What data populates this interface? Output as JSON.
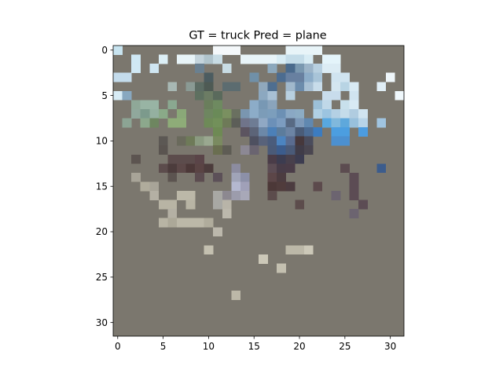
{
  "chart_data": {
    "type": "heatmap",
    "title": "GT = truck Pred = plane",
    "xlabel": "",
    "ylabel": "",
    "grid": false,
    "image_size": [
      32,
      32
    ],
    "xlim": [
      -0.5,
      31.5
    ],
    "ylim": [
      31.5,
      -0.5
    ],
    "x_ticks": [
      0,
      5,
      10,
      15,
      20,
      25,
      30
    ],
    "y_ticks": [
      0,
      5,
      10,
      15,
      20,
      25,
      30
    ],
    "background_color": "#7b776e",
    "runs": [
      [
        0,
        0,
        1,
        "#c8e4f0"
      ],
      [
        0,
        11,
        3,
        "#f4f8fa"
      ],
      [
        0,
        19,
        4,
        "#e8f4f8"
      ],
      [
        1,
        2,
        1,
        "#cfe8f4"
      ],
      [
        1,
        5,
        1,
        "#dceff6"
      ],
      [
        1,
        7,
        2,
        "#e8f4f8"
      ],
      [
        1,
        9,
        1,
        "#c4d4dc"
      ],
      [
        1,
        10,
        1,
        "#b0c4cc"
      ],
      [
        1,
        11,
        1,
        "#c8dce4"
      ],
      [
        1,
        14,
        4,
        "#e8f4f8"
      ],
      [
        1,
        18,
        1,
        "#d8ecf4"
      ],
      [
        1,
        19,
        2,
        "#c4dce8"
      ],
      [
        1,
        21,
        1,
        "#d8ecf4"
      ],
      [
        1,
        23,
        2,
        "#e4f4fa"
      ],
      [
        2,
        2,
        1,
        "#d0e8f4"
      ],
      [
        2,
        4,
        1,
        "#cfe6f2"
      ],
      [
        2,
        9,
        1,
        "#6a8090"
      ],
      [
        2,
        12,
        1,
        "#c8dce4"
      ],
      [
        2,
        17,
        1,
        "#8ca8bc"
      ],
      [
        2,
        19,
        1,
        "#4a6a8c"
      ],
      [
        2,
        20,
        1,
        "#7a98b0"
      ],
      [
        2,
        21,
        1,
        "#9cb4c8"
      ],
      [
        2,
        22,
        1,
        "#b8d0e0"
      ],
      [
        2,
        23,
        2,
        "#dcecf4"
      ],
      [
        3,
        0,
        2,
        "#c4dcec"
      ],
      [
        3,
        10,
        1,
        "#4c5c60"
      ],
      [
        3,
        15,
        1,
        "#7090a8"
      ],
      [
        3,
        18,
        1,
        "#4c6c90"
      ],
      [
        3,
        19,
        2,
        "#6880a0"
      ],
      [
        3,
        21,
        1,
        "#8cacc8"
      ],
      [
        3,
        22,
        1,
        "#a8c4d8"
      ],
      [
        3,
        24,
        2,
        "#d0e4f0"
      ],
      [
        3,
        30,
        1,
        "#eef6fa"
      ],
      [
        4,
        6,
        1,
        "#a8b8b4"
      ],
      [
        4,
        8,
        1,
        "#8a9a94"
      ],
      [
        4,
        9,
        1,
        "#5c6c64"
      ],
      [
        4,
        10,
        1,
        "#4e5a54"
      ],
      [
        4,
        12,
        2,
        "#5c6c70"
      ],
      [
        4,
        16,
        1,
        "#90a8bc"
      ],
      [
        4,
        17,
        1,
        "#4e6e90"
      ],
      [
        4,
        19,
        1,
        "#a0b8cc"
      ],
      [
        4,
        20,
        1,
        "#6c8cac"
      ],
      [
        4,
        21,
        1,
        "#a8c0d4"
      ],
      [
        4,
        22,
        1,
        "#c8dcea"
      ],
      [
        4,
        24,
        1,
        "#d4e6f0"
      ],
      [
        4,
        25,
        1,
        "#b8d4e4"
      ],
      [
        4,
        26,
        1,
        "#d8eaf4"
      ],
      [
        4,
        29,
        1,
        "#e0eef6"
      ],
      [
        5,
        0,
        1,
        "#d8ecf6"
      ],
      [
        5,
        1,
        1,
        "#88a8c0"
      ],
      [
        5,
        9,
        1,
        "#5e7060"
      ],
      [
        5,
        10,
        1,
        "#6c7c64"
      ],
      [
        5,
        11,
        1,
        "#5a6a5c"
      ],
      [
        5,
        16,
        1,
        "#8ca8c0"
      ],
      [
        5,
        17,
        1,
        "#a8c0d4"
      ],
      [
        5,
        19,
        1,
        "#b8d0e0"
      ],
      [
        5,
        23,
        2,
        "#c8dcec"
      ],
      [
        5,
        26,
        1,
        "#d0e4f0"
      ],
      [
        5,
        31,
        1,
        "#f0f8fc"
      ],
      [
        6,
        2,
        1,
        "#8fa898"
      ],
      [
        6,
        3,
        2,
        "#98b4a4"
      ],
      [
        6,
        6,
        1,
        "#8aa890"
      ],
      [
        6,
        10,
        1,
        "#6a7e5c"
      ],
      [
        6,
        11,
        1,
        "#6e8a60"
      ],
      [
        6,
        15,
        1,
        "#8cacc8"
      ],
      [
        6,
        16,
        1,
        "#7898b4"
      ],
      [
        6,
        17,
        1,
        "#8aa4bc"
      ],
      [
        6,
        22,
        1,
        "#9cc0d8"
      ],
      [
        6,
        23,
        1,
        "#c0d8e8"
      ],
      [
        6,
        25,
        1,
        "#c8e0ec"
      ],
      [
        6,
        26,
        1,
        "#d8eaf4"
      ],
      [
        7,
        2,
        1,
        "#90a89c"
      ],
      [
        7,
        3,
        1,
        "#7c9a8c"
      ],
      [
        7,
        4,
        1,
        "#94b0a0"
      ],
      [
        7,
        5,
        1,
        "#8aaa88"
      ],
      [
        7,
        7,
        1,
        "#8aa878"
      ],
      [
        7,
        10,
        1,
        "#6e8660"
      ],
      [
        7,
        11,
        1,
        "#6a8a58"
      ],
      [
        7,
        12,
        1,
        "#7a9060"
      ],
      [
        7,
        13,
        1,
        "#6a7060"
      ],
      [
        7,
        14,
        1,
        "#7a96b0"
      ],
      [
        7,
        15,
        1,
        "#8cacc8"
      ],
      [
        7,
        16,
        1,
        "#7c9cb8"
      ],
      [
        7,
        17,
        1,
        "#7c9ebc"
      ],
      [
        7,
        18,
        1,
        "#6c90b4"
      ],
      [
        7,
        19,
        1,
        "#8aa8c4"
      ],
      [
        7,
        20,
        1,
        "#8cacc4"
      ],
      [
        7,
        22,
        1,
        "#b0d0e4"
      ],
      [
        7,
        23,
        1,
        "#9cc4e0"
      ],
      [
        7,
        24,
        1,
        "#b4d0e4"
      ],
      [
        7,
        25,
        1,
        "#c4dcea"
      ],
      [
        7,
        26,
        1,
        "#b0cce0"
      ],
      [
        7,
        27,
        1,
        "#d0e4f0"
      ],
      [
        8,
        1,
        1,
        "#8ca494"
      ],
      [
        8,
        3,
        1,
        "#8ca88c"
      ],
      [
        8,
        4,
        1,
        "#6e8660"
      ],
      [
        8,
        6,
        2,
        "#8eac78"
      ],
      [
        8,
        10,
        1,
        "#6e8a58"
      ],
      [
        8,
        11,
        1,
        "#72905a"
      ],
      [
        8,
        12,
        1,
        "#6e7a58"
      ],
      [
        8,
        13,
        1,
        "#5c5e58"
      ],
      [
        8,
        14,
        1,
        "#70748a"
      ],
      [
        8,
        15,
        1,
        "#6e7c94"
      ],
      [
        8,
        16,
        1,
        "#90a8c4"
      ],
      [
        8,
        17,
        1,
        "#6c90b8"
      ],
      [
        8,
        18,
        1,
        "#7c9cc0"
      ],
      [
        8,
        19,
        1,
        "#586a84"
      ],
      [
        8,
        20,
        1,
        "#7c98b8"
      ],
      [
        8,
        21,
        1,
        "#6088b0"
      ],
      [
        8,
        23,
        1,
        "#58a8e0"
      ],
      [
        8,
        24,
        1,
        "#80b8dc"
      ],
      [
        8,
        25,
        1,
        "#5ea8dc"
      ],
      [
        8,
        26,
        1,
        "#98c0dc"
      ],
      [
        8,
        27,
        1,
        "#b8d4e8"
      ],
      [
        8,
        29,
        1,
        "#a0c4e0"
      ],
      [
        9,
        11,
        1,
        "#6e8a54"
      ],
      [
        9,
        14,
        1,
        "#5c5460"
      ],
      [
        9,
        15,
        1,
        "#5c6478"
      ],
      [
        9,
        16,
        1,
        "#6c88a8"
      ],
      [
        9,
        17,
        1,
        "#4c80b8"
      ],
      [
        9,
        18,
        1,
        "#5c7c9c"
      ],
      [
        9,
        19,
        1,
        "#6c84a4"
      ],
      [
        9,
        20,
        1,
        "#4a5c78"
      ],
      [
        9,
        21,
        1,
        "#4c6c94"
      ],
      [
        9,
        22,
        1,
        "#3c7cc0"
      ],
      [
        9,
        24,
        2,
        "#4c9ee0"
      ],
      [
        9,
        27,
        1,
        "#4c9ce0"
      ],
      [
        10,
        5,
        1,
        "#5c5854"
      ],
      [
        10,
        7,
        1,
        "#6a6a5c"
      ],
      [
        10,
        8,
        1,
        "#6e7a58"
      ],
      [
        10,
        9,
        1,
        "#8a9a80"
      ],
      [
        10,
        10,
        1,
        "#9aa890"
      ],
      [
        10,
        11,
        1,
        "#7a8a60"
      ],
      [
        10,
        15,
        1,
        "#4e5060"
      ],
      [
        10,
        16,
        1,
        "#58627a"
      ],
      [
        10,
        17,
        1,
        "#4a5c7c"
      ],
      [
        10,
        18,
        1,
        "#4c84c0"
      ],
      [
        10,
        19,
        1,
        "#5a6c90"
      ],
      [
        10,
        20,
        1,
        "#46383c"
      ],
      [
        10,
        21,
        1,
        "#4a4c5c"
      ],
      [
        10,
        24,
        2,
        "#4c90d0"
      ],
      [
        11,
        5,
        1,
        "#5a5450"
      ],
      [
        11,
        11,
        1,
        "#6a6e50"
      ],
      [
        11,
        12,
        1,
        "#5e5c54"
      ],
      [
        11,
        14,
        1,
        "#8c8894"
      ],
      [
        11,
        15,
        1,
        "#6a6470"
      ],
      [
        11,
        17,
        1,
        "#4a5a78"
      ],
      [
        11,
        18,
        1,
        "#3c5c8c"
      ],
      [
        11,
        19,
        1,
        "#4a5a78"
      ],
      [
        11,
        20,
        1,
        "#403c48"
      ],
      [
        11,
        21,
        1,
        "#4a4650"
      ],
      [
        12,
        2,
        1,
        "#5c5450"
      ],
      [
        12,
        6,
        1,
        "#5c4c4c"
      ],
      [
        12,
        7,
        2,
        "#5c4c4c"
      ],
      [
        12,
        9,
        1,
        "#5a4448"
      ],
      [
        12,
        17,
        1,
        "#4a3c48"
      ],
      [
        12,
        18,
        1,
        "#3c3c50"
      ],
      [
        12,
        19,
        1,
        "#48404c"
      ],
      [
        12,
        20,
        1,
        "#3c3c50"
      ],
      [
        13,
        5,
        1,
        "#5c4c4c"
      ],
      [
        13,
        6,
        1,
        "#4c3c3c"
      ],
      [
        13,
        7,
        1,
        "#5c4848"
      ],
      [
        13,
        8,
        1,
        "#4c3838"
      ],
      [
        13,
        9,
        1,
        "#5a4444"
      ],
      [
        13,
        10,
        1,
        "#4c3c3c"
      ],
      [
        13,
        13,
        1,
        "#8c8ca0"
      ],
      [
        13,
        17,
        1,
        "#5c4c54"
      ],
      [
        13,
        18,
        1,
        "#483c48"
      ],
      [
        13,
        19,
        1,
        "#4a3c48"
      ],
      [
        13,
        25,
        1,
        "#5c4c50"
      ],
      [
        13,
        29,
        1,
        "#3c5c8c"
      ],
      [
        14,
        2,
        1,
        "#a8a498"
      ],
      [
        14,
        6,
        1,
        "#5c5450"
      ],
      [
        14,
        9,
        1,
        "#5c4c50"
      ],
      [
        14,
        11,
        1,
        "#5c5058"
      ],
      [
        14,
        13,
        1,
        "#a0a4b8"
      ],
      [
        14,
        14,
        1,
        "#8c90a8"
      ],
      [
        14,
        17,
        1,
        "#5c4648"
      ],
      [
        14,
        18,
        1,
        "#4c3c40"
      ],
      [
        14,
        26,
        1,
        "#5c4c54"
      ],
      [
        15,
        3,
        1,
        "#b0ac9c"
      ],
      [
        15,
        4,
        1,
        "#a8a498"
      ],
      [
        15,
        13,
        1,
        "#b4b8d0"
      ],
      [
        15,
        14,
        1,
        "#a0a0b8"
      ],
      [
        15,
        17,
        1,
        "#4c3838"
      ],
      [
        15,
        18,
        1,
        "#503c3c"
      ],
      [
        15,
        19,
        1,
        "#4c3c40"
      ],
      [
        15,
        22,
        1,
        "#5c4a4c"
      ],
      [
        15,
        26,
        1,
        "#5c4c54"
      ],
      [
        16,
        4,
        1,
        "#b4b0a4"
      ],
      [
        16,
        7,
        2,
        "#bcb8a8"
      ],
      [
        16,
        11,
        1,
        "#a8a8a4"
      ],
      [
        16,
        12,
        1,
        "#8c8890"
      ],
      [
        16,
        13,
        1,
        "#9c9cac"
      ],
      [
        16,
        14,
        1,
        "#a8a8b8"
      ],
      [
        16,
        17,
        1,
        "#5c4c4c"
      ],
      [
        16,
        24,
        1,
        "#6c6470"
      ],
      [
        16,
        26,
        1,
        "#5c4c54"
      ],
      [
        17,
        5,
        2,
        "#b8b4a4"
      ],
      [
        17,
        8,
        1,
        "#b8b4a4"
      ],
      [
        17,
        11,
        1,
        "#a8a8a4"
      ],
      [
        17,
        12,
        1,
        "#b8b4a8"
      ],
      [
        17,
        20,
        1,
        "#5c4c4c"
      ],
      [
        17,
        27,
        1,
        "#5c4c54"
      ],
      [
        18,
        6,
        1,
        "#b4b0a4"
      ],
      [
        18,
        12,
        1,
        "#bcb8ac"
      ],
      [
        18,
        26,
        1,
        "#6c6470"
      ],
      [
        19,
        5,
        1,
        "#b8b4a4"
      ],
      [
        19,
        6,
        1,
        "#aca898"
      ],
      [
        19,
        7,
        3,
        "#bcb8a8"
      ],
      [
        19,
        10,
        1,
        "#b0ac9c"
      ],
      [
        20,
        11,
        1,
        "#bcb8ac"
      ],
      [
        22,
        10,
        1,
        "#c4c0b0"
      ],
      [
        22,
        19,
        2,
        "#bcb8a8"
      ],
      [
        22,
        21,
        1,
        "#ccc8b8"
      ],
      [
        23,
        16,
        1,
        "#ccc8b8"
      ],
      [
        24,
        18,
        1,
        "#c4c0b0"
      ],
      [
        27,
        13,
        1,
        "#bcb8a8"
      ]
    ]
  }
}
